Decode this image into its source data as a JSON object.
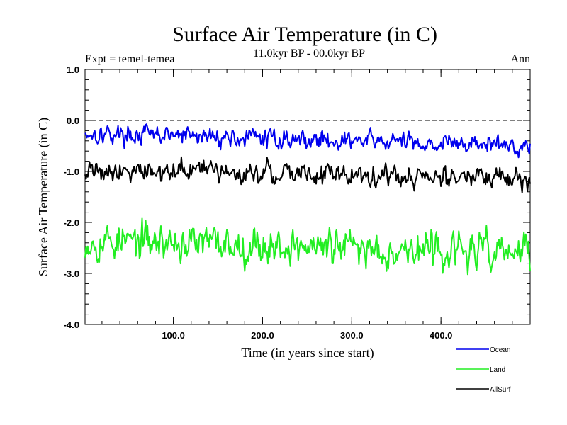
{
  "chart_data": {
    "type": "line",
    "title": "Surface Air Temperature (in C)",
    "subtitle": "11.0kyr BP - 00.0kyr BP",
    "experiment_label": "Expt = temel-temea",
    "period_label": "Ann",
    "xlabel": "Time (in years since start)",
    "ylabel": "Surface Air Temperature (in C)",
    "xlim": [
      1,
      500
    ],
    "ylim": [
      -4.0,
      1.0
    ],
    "x_ticks": [
      {
        "value": 100,
        "label": "100.0"
      },
      {
        "value": 200,
        "label": "200.0"
      },
      {
        "value": 300,
        "label": "300.0"
      },
      {
        "value": 400,
        "label": "400.0"
      }
    ],
    "y_ticks": [
      {
        "value": 1.0,
        "label": "1.0"
      },
      {
        "value": 0.0,
        "label": "0.0"
      },
      {
        "value": -1.0,
        "label": "-1.0"
      },
      {
        "value": -2.0,
        "label": "-2.0"
      },
      {
        "value": -3.0,
        "label": "-3.0"
      },
      {
        "value": -4.0,
        "label": "-4.0"
      }
    ],
    "reference_line": 0.0,
    "legend_position": "bottom-right",
    "series": [
      {
        "name": "Ocean",
        "color": "#0000ee",
        "mean_start": -0.25,
        "mean_end": -0.5,
        "amplitude": 0.14,
        "min": -0.75,
        "max": 0.05,
        "seed": 17
      },
      {
        "name": "Land",
        "color": "#22ee22",
        "mean_start": -2.35,
        "mean_end": -2.6,
        "amplitude": 0.27,
        "min": -3.1,
        "max": -1.8,
        "seed": 53
      },
      {
        "name": "AllSurf",
        "color": "#000000",
        "mean_start": -0.95,
        "mean_end": -1.15,
        "amplitude": 0.16,
        "min": -1.5,
        "max": -0.6,
        "seed": 91
      }
    ]
  }
}
